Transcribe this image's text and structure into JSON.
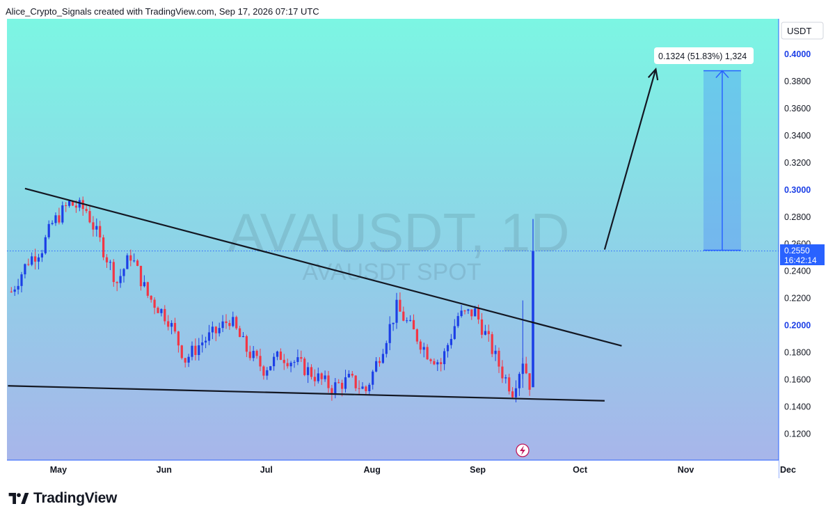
{
  "header": {
    "attribution": "Alice_Crypto_Signals created with TradingView.com, Sep 17, 2026 07:17 UTC"
  },
  "watermark": {
    "symbol": "AVAUSDT, 1D",
    "subtitle": "AVAUSDT SPOT"
  },
  "currency_label": "USDT",
  "price_badge": {
    "price": "0.2550",
    "countdown": "16:42:14"
  },
  "measure_label": "0.1324 (51.83%) 1,324",
  "footer": {
    "brand": "TradingView"
  },
  "colors": {
    "background_top": "#7df5e4",
    "background_bottom": "#a8b4ea",
    "up_candle": "#1c3fe6",
    "down_candle": "#f23645",
    "accent": "#2962ff"
  },
  "chart_data": {
    "type": "candlestick",
    "symbol": "AVAUSDT",
    "timeframe": "1D",
    "y_axis": {
      "range": [
        0.1,
        0.42
      ],
      "ticks": [
        "0.1200",
        "0.1400",
        "0.1600",
        "0.1800",
        "0.2000",
        "0.2200",
        "0.2400",
        "0.2600",
        "0.2800",
        "0.3000",
        "0.3200",
        "0.3400",
        "0.3600",
        "0.3800",
        "0.4000"
      ],
      "bold_ticks": [
        "0.2000",
        "0.3000",
        "0.4000"
      ]
    },
    "x_axis": {
      "labels": [
        "May",
        "Jun",
        "Jul",
        "Aug",
        "Sep",
        "Oct",
        "Nov",
        "Dec"
      ]
    },
    "current_price": 0.255,
    "trendlines": [
      {
        "name": "descending resistance",
        "from": {
          "date": "2026-04-21",
          "price": 0.301
        },
        "to": {
          "date": "2026-10-13",
          "price": 0.185
        }
      },
      {
        "name": "support",
        "from": {
          "date": "2026-04-16",
          "price": 0.1555
        },
        "to": {
          "date": "2026-10-08",
          "price": 0.1445
        }
      }
    ],
    "projection_arrow": {
      "from": {
        "date": "2026-10-08",
        "price": 0.256
      },
      "to": {
        "date": "2026-10-23",
        "price": 0.389
      }
    },
    "target_box": {
      "date_start": "2026-11-06",
      "date_end": "2026-11-17",
      "price_low": 0.2555,
      "price_high": 0.3879
    },
    "measurement": {
      "change": "0.1324",
      "percent": "51.83%",
      "ticks": "1,324"
    },
    "ohlc_close_path": [
      {
        "date": "2026-04-17",
        "close": 0.225
      },
      {
        "date": "2026-04-22",
        "close": 0.248
      },
      {
        "date": "2026-04-26",
        "close": 0.257
      },
      {
        "date": "2026-04-29",
        "close": 0.275
      },
      {
        "date": "2026-05-04",
        "close": 0.29
      },
      {
        "date": "2026-05-09",
        "close": 0.285
      },
      {
        "date": "2026-05-13",
        "close": 0.262
      },
      {
        "date": "2026-05-18",
        "close": 0.232
      },
      {
        "date": "2026-05-22",
        "close": 0.252
      },
      {
        "date": "2026-05-27",
        "close": 0.222
      },
      {
        "date": "2026-06-02",
        "close": 0.205
      },
      {
        "date": "2026-06-07",
        "close": 0.175
      },
      {
        "date": "2026-06-12",
        "close": 0.188
      },
      {
        "date": "2026-06-16",
        "close": 0.195
      },
      {
        "date": "2026-06-20",
        "close": 0.205
      },
      {
        "date": "2026-06-25",
        "close": 0.182
      },
      {
        "date": "2026-06-30",
        "close": 0.168
      },
      {
        "date": "2026-07-05",
        "close": 0.178
      },
      {
        "date": "2026-07-10",
        "close": 0.172
      },
      {
        "date": "2026-07-15",
        "close": 0.163
      },
      {
        "date": "2026-07-20",
        "close": 0.154
      },
      {
        "date": "2026-07-25",
        "close": 0.16
      },
      {
        "date": "2026-07-30",
        "close": 0.152
      },
      {
        "date": "2026-08-04",
        "close": 0.185
      },
      {
        "date": "2026-08-08",
        "close": 0.213
      },
      {
        "date": "2026-08-13",
        "close": 0.195
      },
      {
        "date": "2026-08-17",
        "close": 0.18
      },
      {
        "date": "2026-08-21",
        "close": 0.172
      },
      {
        "date": "2026-08-26",
        "close": 0.207
      },
      {
        "date": "2026-08-31",
        "close": 0.21
      },
      {
        "date": "2026-09-04",
        "close": 0.188
      },
      {
        "date": "2026-09-08",
        "close": 0.165
      },
      {
        "date": "2026-09-11",
        "close": 0.152
      },
      {
        "date": "2026-09-14",
        "close": 0.175
      },
      {
        "date": "2026-09-16",
        "close": 0.157
      },
      {
        "date": "2026-09-17",
        "close": 0.255
      }
    ]
  }
}
